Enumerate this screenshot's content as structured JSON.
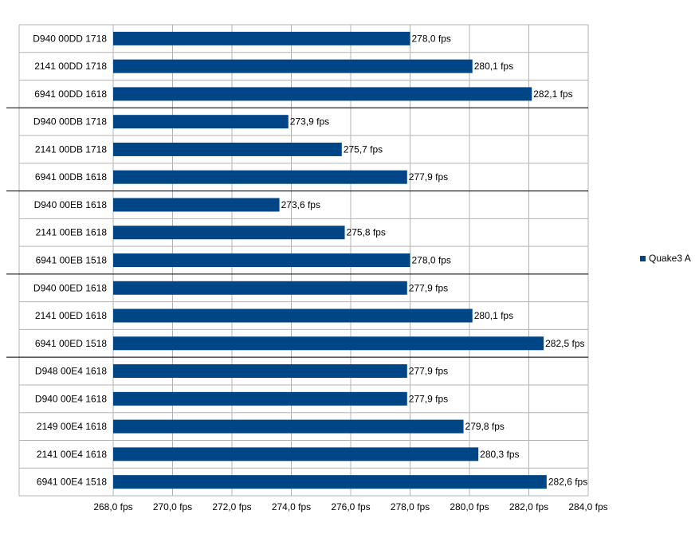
{
  "chart_data": {
    "type": "bar",
    "orientation": "horizontal",
    "categories": [
      "D940 00DD 1718",
      "2141 00DD 1718",
      "6941 00DD 1618",
      "D940 00DB 1718",
      "2141 00DB 1718",
      "6941 00DB 1618",
      "D940 00EB 1618",
      "2141 00EB 1618",
      "6941 00EB 1518",
      "D940 00ED 1618",
      "2141 00ED 1618",
      "6941 00ED 1518",
      "D948 00E4 1618",
      "D940 00E4 1618",
      "2149 00E4 1618",
      "2141 00E4 1618",
      "6941 00E4 1518"
    ],
    "category_parts": [
      [
        "D940",
        "00DD",
        "1718"
      ],
      [
        "2141",
        "00DD",
        "1718"
      ],
      [
        "6941",
        "00DD",
        "1618"
      ],
      [
        "D940",
        "00DB",
        "1718"
      ],
      [
        "2141",
        "00DB",
        "1718"
      ],
      [
        "6941",
        "00DB",
        "1618"
      ],
      [
        "D940",
        "00EB",
        "1618"
      ],
      [
        "2141",
        "00EB",
        "1618"
      ],
      [
        "6941",
        "00EB",
        "1518"
      ],
      [
        "D940",
        "00ED",
        "1618"
      ],
      [
        "2141",
        "00ED",
        "1618"
      ],
      [
        "6941",
        "00ED",
        "1518"
      ],
      [
        "D948",
        "00E4",
        "1618"
      ],
      [
        "D940",
        "00E4",
        "1618"
      ],
      [
        "2149",
        "00E4",
        "1618"
      ],
      [
        "2141",
        "00E4",
        "1618"
      ],
      [
        "6941",
        "00E4",
        "1518"
      ]
    ],
    "series": [
      {
        "name": "Quake3 A",
        "color": "#004586",
        "values": [
          278.0,
          280.1,
          282.1,
          273.9,
          275.7,
          277.9,
          273.6,
          275.8,
          278.0,
          277.9,
          280.1,
          282.5,
          277.9,
          277.9,
          279.8,
          280.3,
          282.6
        ],
        "value_labels": [
          "278,0 fps",
          "280,1 fps",
          "282,1 fps",
          "273,9 fps",
          "275,7 fps",
          "277,9 fps",
          "273,6 fps",
          "275,8 fps",
          "278,0 fps",
          "277,9 fps",
          "280,1 fps",
          "282,5 fps",
          "277,9 fps",
          "277,9 fps",
          "279,8 fps",
          "280,3 fps",
          "282,6 fps"
        ]
      }
    ],
    "xlim": [
      268,
      284
    ],
    "x_ticks": [
      268,
      270,
      272,
      274,
      276,
      278,
      280,
      282,
      284
    ],
    "x_tick_labels": [
      "268,0 fps",
      "270,0 fps",
      "272,0 fps",
      "274,0 fps",
      "276,0 fps",
      "278,0 fps",
      "280,0 fps",
      "282,0 fps",
      "284,0 fps"
    ],
    "group_sizes": [
      3,
      3,
      3,
      3,
      5
    ],
    "grid": true,
    "legend_position": "right",
    "title": "",
    "xlabel": "",
    "ylabel": ""
  },
  "legend": {
    "label": "Quake3 A",
    "color": "#004586"
  }
}
